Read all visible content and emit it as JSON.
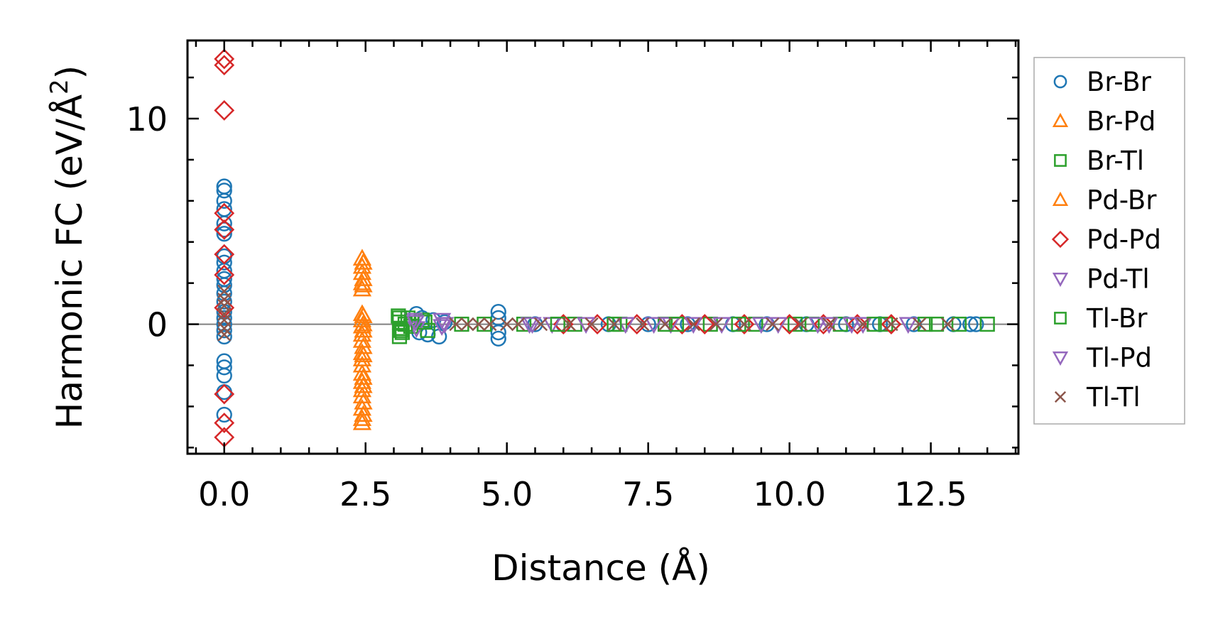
{
  "chart_data": {
    "type": "scatter",
    "title": "",
    "xlabel": "Distance (Å)",
    "ylabel": "Harmonic FC (eV/Å",
    "ylabel_sup": "2",
    "ylabel_close": ")",
    "xlim": [
      -0.65,
      14.05
    ],
    "ylim": [
      -6.3,
      13.8
    ],
    "x_ticks": [
      0.0,
      2.5,
      5.0,
      7.5,
      10.0,
      12.5
    ],
    "x_tick_labels": [
      "0.0",
      "2.5",
      "5.0",
      "7.5",
      "10.0",
      "12.5"
    ],
    "y_ticks": [
      0,
      10
    ],
    "y_tick_labels": [
      "0",
      "10"
    ],
    "y_minor_step": 2,
    "x_minor_step": 0.5,
    "reference_line_y": 0,
    "legend_position": "outside-right",
    "series": [
      {
        "name": "Br-Br",
        "marker": "circle",
        "color": "#1f77b4",
        "points": [
          [
            0,
            6.7
          ],
          [
            0,
            6.5
          ],
          [
            0,
            6.0
          ],
          [
            0,
            5.6
          ],
          [
            0,
            4.9
          ],
          [
            0,
            4.6
          ],
          [
            0,
            4.4
          ],
          [
            0,
            3.3
          ],
          [
            0,
            3.0
          ],
          [
            0,
            2.6
          ],
          [
            0,
            2.2
          ],
          [
            0,
            1.9
          ],
          [
            0,
            1.5
          ],
          [
            0,
            1.1
          ],
          [
            0,
            0.6
          ],
          [
            0,
            0.3
          ],
          [
            0,
            0
          ],
          [
            0,
            -0.3
          ],
          [
            0,
            -0.6
          ],
          [
            0,
            -1.8
          ],
          [
            0,
            -2.1
          ],
          [
            0,
            -2.5
          ],
          [
            0,
            -3.3
          ],
          [
            0,
            -4.4
          ],
          [
            3.4,
            0.5
          ],
          [
            3.45,
            -0.4
          ],
          [
            3.5,
            0.3
          ],
          [
            3.6,
            -0.5
          ],
          [
            3.7,
            0.2
          ],
          [
            3.8,
            -0.6
          ],
          [
            3.9,
            0.1
          ],
          [
            4.85,
            0.6
          ],
          [
            4.85,
            0.3
          ],
          [
            4.85,
            -0.4
          ],
          [
            4.85,
            -0.7
          ],
          [
            5.5,
            0
          ],
          [
            6.0,
            0
          ],
          [
            6.8,
            0
          ],
          [
            7.5,
            0
          ],
          [
            8.2,
            0
          ],
          [
            9.0,
            0
          ],
          [
            9.6,
            0
          ],
          [
            10.3,
            0
          ],
          [
            11.0,
            0
          ],
          [
            11.6,
            0
          ],
          [
            12.2,
            0
          ],
          [
            12.9,
            0
          ],
          [
            13.2,
            0
          ],
          [
            13.3,
            0
          ]
        ]
      },
      {
        "name": "Br-Pd",
        "marker": "triangle-up",
        "color": "#ff7f0e",
        "points": [
          [
            2.44,
            3.2
          ],
          [
            2.44,
            2.8
          ],
          [
            2.44,
            2.5
          ],
          [
            2.44,
            2.0
          ],
          [
            2.44,
            1.7
          ],
          [
            2.44,
            0.5
          ],
          [
            2.44,
            0.2
          ],
          [
            2.44,
            -0.1
          ],
          [
            2.44,
            -0.5
          ],
          [
            2.44,
            -0.8
          ],
          [
            2.44,
            -1.4
          ],
          [
            2.44,
            -1.7
          ],
          [
            2.44,
            -2.0
          ],
          [
            2.44,
            -2.4
          ],
          [
            2.44,
            -2.8
          ],
          [
            2.44,
            -3.2
          ],
          [
            2.44,
            -3.5
          ],
          [
            2.44,
            -4.1
          ],
          [
            2.44,
            -4.6
          ],
          [
            2.44,
            -4.8
          ]
        ]
      },
      {
        "name": "Br-Tl",
        "marker": "square",
        "color": "#2ca02c",
        "points": [
          [
            3.08,
            0.4
          ],
          [
            3.1,
            0.1
          ],
          [
            3.12,
            -0.2
          ],
          [
            3.1,
            -0.6
          ],
          [
            3.15,
            -0.4
          ],
          [
            3.25,
            0.3
          ],
          [
            3.3,
            -0.1
          ],
          [
            3.5,
            0.2
          ],
          [
            3.6,
            -0.3
          ],
          [
            4.2,
            0
          ],
          [
            5.3,
            0
          ],
          [
            6.2,
            0
          ],
          [
            7.0,
            0
          ],
          [
            7.8,
            0
          ],
          [
            8.6,
            0
          ],
          [
            9.4,
            0
          ],
          [
            10.1,
            0
          ],
          [
            10.9,
            0
          ],
          [
            11.7,
            0
          ],
          [
            12.4,
            0
          ],
          [
            13.0,
            0
          ],
          [
            13.5,
            0
          ]
        ]
      },
      {
        "name": "Pd-Br",
        "marker": "triangle-up",
        "color": "#ff7f0e",
        "points": [
          [
            2.46,
            3.0
          ],
          [
            2.46,
            2.2
          ],
          [
            2.46,
            1.9
          ],
          [
            2.46,
            0.4
          ],
          [
            2.46,
            0.0
          ],
          [
            2.46,
            -0.3
          ],
          [
            2.46,
            -1.1
          ],
          [
            2.46,
            -1.5
          ],
          [
            2.46,
            -2.6
          ],
          [
            2.46,
            -3.0
          ],
          [
            2.46,
            -3.8
          ],
          [
            2.46,
            -4.4
          ]
        ]
      },
      {
        "name": "Pd-Pd",
        "marker": "diamond",
        "color": "#d62728",
        "points": [
          [
            0,
            12.9
          ],
          [
            0,
            12.6
          ],
          [
            0,
            10.4
          ],
          [
            0,
            5.4
          ],
          [
            0,
            4.6
          ],
          [
            0,
            3.4
          ],
          [
            0,
            2.4
          ],
          [
            0,
            0.8
          ],
          [
            0,
            -3.4
          ],
          [
            0,
            -4.8
          ],
          [
            0,
            -5.5
          ],
          [
            6.0,
            0
          ],
          [
            6.6,
            0
          ],
          [
            7.3,
            0
          ],
          [
            8.1,
            0
          ],
          [
            8.5,
            0
          ],
          [
            9.2,
            0
          ],
          [
            10.0,
            0
          ],
          [
            10.6,
            0
          ],
          [
            11.2,
            0
          ],
          [
            11.8,
            0
          ]
        ]
      },
      {
        "name": "Pd-Tl",
        "marker": "triangle-down",
        "color": "#9467bd",
        "points": [
          [
            3.35,
            0.2
          ],
          [
            3.4,
            -0.2
          ],
          [
            3.85,
            0.2
          ],
          [
            3.85,
            -0.1
          ],
          [
            5.4,
            0
          ],
          [
            5.8,
            0
          ],
          [
            7.1,
            0
          ],
          [
            7.9,
            0
          ],
          [
            8.8,
            0
          ],
          [
            9.8,
            0
          ],
          [
            10.7,
            0
          ],
          [
            11.3,
            0
          ]
        ]
      },
      {
        "name": "Tl-Br",
        "marker": "square",
        "color": "#2ca02c",
        "points": [
          [
            3.1,
            0.3
          ],
          [
            3.12,
            -0.3
          ],
          [
            3.2,
            0
          ],
          [
            3.55,
            0.1
          ],
          [
            4.6,
            0
          ],
          [
            5.9,
            0
          ],
          [
            6.9,
            0
          ],
          [
            8.0,
            0
          ],
          [
            9.1,
            0
          ],
          [
            10.4,
            0
          ],
          [
            11.5,
            0
          ],
          [
            12.6,
            0
          ]
        ]
      },
      {
        "name": "Tl-Pd",
        "marker": "triangle-down",
        "color": "#9467bd",
        "points": [
          [
            3.38,
            0.1
          ],
          [
            3.9,
            0
          ],
          [
            5.45,
            0
          ],
          [
            6.4,
            0
          ],
          [
            7.6,
            0
          ],
          [
            8.3,
            0
          ],
          [
            9.5,
            0
          ],
          [
            10.5,
            0
          ],
          [
            11.1,
            0
          ],
          [
            12.1,
            0
          ]
        ]
      },
      {
        "name": "Tl-Tl",
        "marker": "x",
        "color": "#8c564b",
        "points": [
          [
            0,
            1.6
          ],
          [
            0,
            1.2
          ],
          [
            0,
            0.9
          ],
          [
            0,
            0.5
          ],
          [
            0,
            0.2
          ],
          [
            0,
            -0.2
          ],
          [
            0,
            -0.5
          ],
          [
            4.1,
            0
          ],
          [
            4.3,
            0
          ],
          [
            4.5,
            0
          ],
          [
            4.7,
            0
          ],
          [
            5.0,
            0
          ],
          [
            5.2,
            0
          ],
          [
            5.6,
            0
          ],
          [
            6.1,
            0
          ],
          [
            6.5,
            0
          ],
          [
            6.9,
            0
          ],
          [
            7.4,
            0
          ],
          [
            7.8,
            0
          ],
          [
            8.3,
            0
          ],
          [
            8.7,
            0
          ],
          [
            9.2,
            0
          ],
          [
            9.7,
            0
          ],
          [
            10.2,
            0
          ],
          [
            10.7,
            0
          ],
          [
            11.3,
            0
          ],
          [
            11.8,
            0
          ],
          [
            12.3,
            0
          ],
          [
            12.8,
            0
          ]
        ]
      }
    ]
  }
}
